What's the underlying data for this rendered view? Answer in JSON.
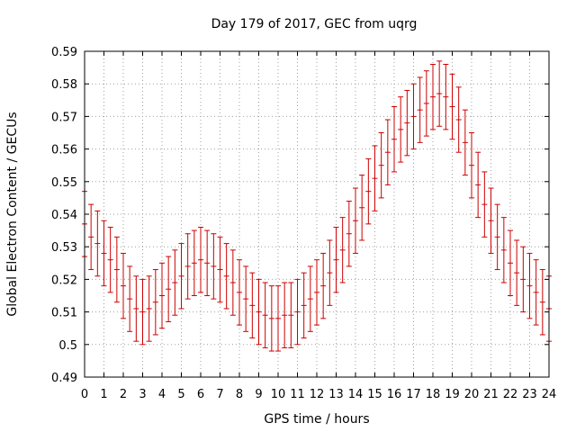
{
  "chart_data": {
    "type": "scatter",
    "title": "Day 179 of 2017, GEC from uqrg",
    "xlabel": "GPS time / hours",
    "ylabel": "Global Electron Content / GECUs",
    "xlim": [
      0,
      24
    ],
    "ylim": [
      0.49,
      0.59
    ],
    "grid": true,
    "error_bars": true,
    "color": "#cc0000",
    "x_ticks": [
      "0",
      "1",
      "2",
      "3",
      "4",
      "5",
      "6",
      "7",
      "8",
      "9",
      "10",
      "11",
      "12",
      "13",
      "14",
      "15",
      "16",
      "17",
      "18",
      "19",
      "20",
      "21",
      "22",
      "23",
      "24"
    ],
    "y_ticks": [
      "0.49",
      "0.5",
      "0.51",
      "0.52",
      "0.53",
      "0.54",
      "0.55",
      "0.56",
      "0.57",
      "0.58",
      "0.59"
    ],
    "series": [
      {
        "x": [
          0,
          0.333,
          0.667,
          1,
          1.333,
          1.667,
          2,
          2.333,
          2.667,
          3,
          3.333,
          3.667,
          4,
          4.333,
          4.667,
          5,
          5.333,
          5.667,
          6,
          6.333,
          6.667,
          7,
          7.333,
          7.667,
          8,
          8.333,
          8.667,
          9,
          9.333,
          9.667,
          10,
          10.333,
          10.667,
          11,
          11.333,
          11.667,
          12,
          12.333,
          12.667,
          13,
          13.333,
          13.667,
          14,
          14.333,
          14.667,
          15,
          15.333,
          15.667,
          16,
          16.333,
          16.667,
          17,
          17.333,
          17.667,
          18,
          18.333,
          18.667,
          19,
          19.333,
          19.667,
          20,
          20.333,
          20.667,
          21,
          21.333,
          21.667,
          22,
          22.333,
          22.667,
          23,
          23.333,
          23.667,
          24
        ],
        "y": [
          0.537,
          0.533,
          0.531,
          0.528,
          0.526,
          0.523,
          0.518,
          0.514,
          0.511,
          0.51,
          0.511,
          0.513,
          0.515,
          0.517,
          0.519,
          0.521,
          0.524,
          0.525,
          0.526,
          0.525,
          0.524,
          0.523,
          0.521,
          0.519,
          0.516,
          0.514,
          0.512,
          0.51,
          0.509,
          0.508,
          0.508,
          0.509,
          0.509,
          0.51,
          0.512,
          0.514,
          0.516,
          0.518,
          0.522,
          0.526,
          0.529,
          0.534,
          0.538,
          0.542,
          0.547,
          0.551,
          0.555,
          0.559,
          0.563,
          0.566,
          0.568,
          0.57,
          0.572,
          0.574,
          0.576,
          0.577,
          0.576,
          0.573,
          0.569,
          0.562,
          0.555,
          0.549,
          0.543,
          0.538,
          0.533,
          0.529,
          0.525,
          0.522,
          0.52,
          0.518,
          0.516,
          0.513,
          0.511
        ],
        "err": 0.01
      }
    ]
  }
}
